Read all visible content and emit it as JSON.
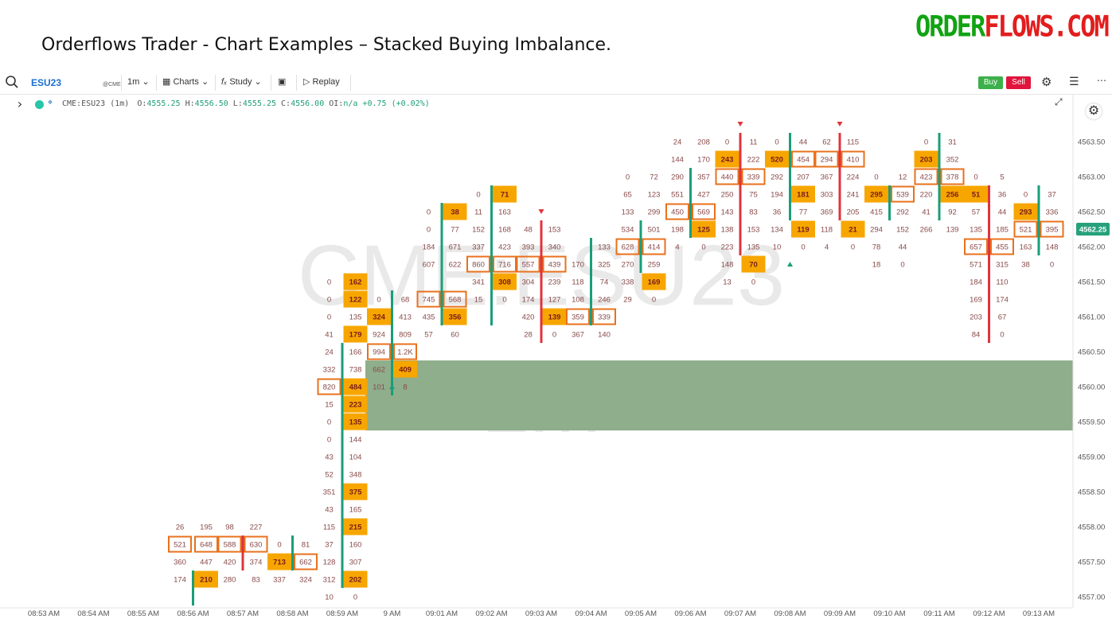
{
  "header": {
    "title": "Orderflows Trader - Chart Examples – Stacked Buying Imbalance.",
    "brand_left": "ORDER",
    "brand_right": "FLOWS.COM"
  },
  "toolbar": {
    "symbol": "ESU23",
    "exchange_badge": "@CME",
    "interval": "1m",
    "charts_label": "Charts",
    "study_label": "Study",
    "replay_label": "Replay",
    "buy_label": "Buy",
    "sell_label": "Sell"
  },
  "symbol_info": {
    "name": "CME:ESU23 (1m)",
    "o_label": "O:",
    "o": "4555.25",
    "h_label": "H:",
    "h": "4556.50",
    "l_label": "L:",
    "l": "4555.25",
    "c_label": "C:",
    "c": "4556.00",
    "oi_label": "OI:",
    "oi": "n/a",
    "change": "+0.75",
    "change_pct": "(+0.02%)"
  },
  "watermark": {
    "symbol": "CME:ESU23",
    "interval": "1m"
  },
  "colors": {
    "accent": "#1a6fd0",
    "buy_imbalance_fill": "#f7a600",
    "imbalance_outline": "#e8711c",
    "bull_bar": "#1a9e7a",
    "bear_bar": "#e0343c",
    "zone": "#8fae8c",
    "price_tag": "#26a17b",
    "cell_text": "#8a4a4a"
  },
  "chart_data": {
    "type": "footprint",
    "title": "",
    "price_step": 0.25,
    "last_price": "4562.25",
    "y_axis": {
      "min": 4556.75,
      "max": 4563.75,
      "ticks": [
        "4563.50",
        "4563.00",
        "4562.50",
        "4562.00",
        "4561.50",
        "4561.00",
        "4560.50",
        "4560.00",
        "4559.50",
        "4559.00",
        "4558.50",
        "4558.00",
        "4557.50",
        "4557.00"
      ]
    },
    "x_axis": {
      "ticks": [
        "08:53 AM",
        "08:54 AM",
        "08:55 AM",
        "08:56 AM",
        "08:57 AM",
        "08:58 AM",
        "08:59 AM",
        "9 AM",
        "09:01 AM",
        "09:02 AM",
        "09:03 AM",
        "09:04 AM",
        "09:05 AM",
        "09:06 AM",
        "09:07 AM",
        "09:08 AM",
        "09:09 AM",
        "09:10 AM",
        "09:11 AM",
        "09:12 AM",
        "09:13 AM"
      ]
    },
    "zone": {
      "from": 4559.5,
      "to": 4560.25
    },
    "markers": [
      {
        "type": "down",
        "bar": "09:03 AM",
        "price": 4562.5
      },
      {
        "type": "down",
        "bar": "09:07 AM",
        "price": 4563.75
      },
      {
        "type": "down",
        "bar": "09:09 AM",
        "price": 4563.75
      },
      {
        "type": "up",
        "bar": "9 AM",
        "price": 4560.0
      },
      {
        "type": "up",
        "bar": "09:08 AM",
        "price": 4561.75
      }
    ],
    "bars": [
      {
        "time": "08:56 AM",
        "dir": "up",
        "range": [
          4557.0,
          4557.25
        ],
        "cells": [
          {
            "p": 4558.0,
            "b": "26",
            "a": "195"
          },
          {
            "p": 4557.75,
            "b": "521",
            "a": "648",
            "hb": "o",
            "ha": "o"
          },
          {
            "p": 4557.5,
            "b": "360",
            "a": "447"
          },
          {
            "p": 4557.25,
            "b": "174",
            "a": "210",
            "ha": "f"
          }
        ]
      },
      {
        "time": "08:57 AM",
        "dir": "down",
        "range": [
          4557.5,
          4557.75
        ],
        "cells": [
          {
            "p": 4558.0,
            "b": "98",
            "a": "227"
          },
          {
            "p": 4557.75,
            "b": "588",
            "a": "630",
            "hb": "o",
            "ha": "o"
          },
          {
            "p": 4557.5,
            "b": "420",
            "a": "374"
          },
          {
            "p": 4557.25,
            "b": "280",
            "a": "83"
          }
        ]
      },
      {
        "time": "08:58 AM",
        "dir": "up",
        "range": [
          4557.5,
          4557.75
        ],
        "cells": [
          {
            "p": 4557.75,
            "b": "0",
            "a": "81"
          },
          {
            "p": 4557.5,
            "b": "713",
            "a": "662",
            "hb": "f",
            "ha": "o"
          },
          {
            "p": 4557.25,
            "b": "337",
            "a": "324"
          }
        ]
      },
      {
        "time": "08:59 AM",
        "dir": "up",
        "range": [
          4557.25,
          4560.5
        ],
        "cells": [
          {
            "p": 4561.5,
            "b": "0",
            "a": "162",
            "ha": "f"
          },
          {
            "p": 4561.25,
            "b": "0",
            "a": "122",
            "ha": "f"
          },
          {
            "p": 4561.0,
            "b": "0",
            "a": "135"
          },
          {
            "p": 4560.75,
            "b": "41",
            "a": "179",
            "ha": "f"
          },
          {
            "p": 4560.5,
            "b": "24",
            "a": "166"
          },
          {
            "p": 4560.25,
            "b": "332",
            "a": "738"
          },
          {
            "p": 4560.0,
            "b": "820",
            "a": "484",
            "hb": "o",
            "ha": "f"
          },
          {
            "p": 4559.75,
            "b": "15",
            "a": "223",
            "ha": "f"
          },
          {
            "p": 4559.5,
            "b": "0",
            "a": "135",
            "ha": "f"
          },
          {
            "p": 4559.25,
            "b": "0",
            "a": "144"
          },
          {
            "p": 4559.0,
            "b": "43",
            "a": "104"
          },
          {
            "p": 4558.75,
            "b": "52",
            "a": "348"
          },
          {
            "p": 4558.5,
            "b": "351",
            "a": "375",
            "ha": "f"
          },
          {
            "p": 4558.25,
            "b": "43",
            "a": "165"
          },
          {
            "p": 4558.0,
            "b": "115",
            "a": "215",
            "ha": "f"
          },
          {
            "p": 4557.75,
            "b": "37",
            "a": "160"
          },
          {
            "p": 4557.5,
            "b": "128",
            "a": "307"
          },
          {
            "p": 4557.25,
            "b": "312",
            "a": "202",
            "ha": "f"
          },
          {
            "p": 4557.0,
            "b": "10",
            "a": "0"
          }
        ]
      },
      {
        "time": "9 AM",
        "dir": "up",
        "range": [
          4560.0,
          4561.25
        ],
        "cells": [
          {
            "p": 4561.25,
            "b": "0",
            "a": "68"
          },
          {
            "p": 4561.0,
            "b": "324",
            "a": "413",
            "hb": "f"
          },
          {
            "p": 4560.75,
            "b": "924",
            "a": "809"
          },
          {
            "p": 4560.5,
            "b": "994",
            "a": "1.2K",
            "hb": "o",
            "ha": "o"
          },
          {
            "p": 4560.25,
            "b": "662",
            "a": "409",
            "ha": "f"
          },
          {
            "p": 4560.0,
            "b": "101",
            "a": "8"
          }
        ]
      },
      {
        "time": "09:01 AM",
        "dir": "up",
        "range": [
          4561.0,
          4562.5
        ],
        "cells": [
          {
            "p": 4562.5,
            "b": "0",
            "a": "38",
            "ha": "f"
          },
          {
            "p": 4562.25,
            "b": "0",
            "a": "77"
          },
          {
            "p": 4562.0,
            "b": "184",
            "a": "671"
          },
          {
            "p": 4561.75,
            "b": "607",
            "a": "622"
          },
          {
            "p": 4561.25,
            "b": "745",
            "a": "568",
            "hb": "o",
            "ha": "o"
          },
          {
            "p": 4561.0,
            "b": "435",
            "a": "356",
            "ha": "f"
          },
          {
            "p": 4560.75,
            "b": "57",
            "a": "60"
          }
        ]
      },
      {
        "time": "09:02 AM",
        "dir": "up",
        "range": [
          4561.0,
          4562.75
        ],
        "cells": [
          {
            "p": 4562.75,
            "b": "0",
            "a": "71",
            "ha": "f"
          },
          {
            "p": 4562.5,
            "b": "11",
            "a": "163"
          },
          {
            "p": 4562.25,
            "b": "152",
            "a": "168"
          },
          {
            "p": 4562.0,
            "b": "337",
            "a": "423"
          },
          {
            "p": 4561.75,
            "b": "860",
            "a": "716",
            "hb": "o",
            "ha": "o"
          },
          {
            "p": 4561.5,
            "b": "341",
            "a": "308",
            "ha": "f"
          },
          {
            "p": 4561.25,
            "b": "15",
            "a": "0"
          }
        ]
      },
      {
        "time": "09:03 AM",
        "dir": "down",
        "range": [
          4560.75,
          4562.25
        ],
        "cells": [
          {
            "p": 4562.25,
            "b": "48",
            "a": "153"
          },
          {
            "p": 4562.0,
            "b": "393",
            "a": "340"
          },
          {
            "p": 4561.75,
            "b": "557",
            "a": "439",
            "hb": "o",
            "ha": "o"
          },
          {
            "p": 4561.5,
            "b": "304",
            "a": "239"
          },
          {
            "p": 4561.25,
            "b": "174",
            "a": "127"
          },
          {
            "p": 4561.0,
            "b": "420",
            "a": "139",
            "ha": "f"
          },
          {
            "p": 4560.75,
            "b": "28",
            "a": "0"
          }
        ]
      },
      {
        "time": "09:04 AM",
        "dir": "up",
        "range": [
          4561.0,
          4562.0
        ],
        "cells": [
          {
            "p": 4562.0,
            "b": "",
            "a": "133"
          },
          {
            "p": 4561.75,
            "b": "170",
            "a": "325"
          },
          {
            "p": 4561.5,
            "b": "118",
            "a": "74"
          },
          {
            "p": 4561.25,
            "b": "108",
            "a": "246"
          },
          {
            "p": 4561.0,
            "b": "359",
            "a": "339",
            "hb": "o",
            "ha": "o"
          },
          {
            "p": 4560.75,
            "b": "367",
            "a": "140"
          }
        ]
      },
      {
        "time": "09:05 AM",
        "dir": "up",
        "range": [
          4561.75,
          4562.25
        ],
        "cells": [
          {
            "p": 4563.0,
            "b": "0",
            "a": "72"
          },
          {
            "p": 4562.75,
            "b": "65",
            "a": "123"
          },
          {
            "p": 4562.5,
            "b": "133",
            "a": "299"
          },
          {
            "p": 4562.25,
            "b": "534",
            "a": "501"
          },
          {
            "p": 4562.0,
            "b": "628",
            "a": "414",
            "hb": "o",
            "ha": "o"
          },
          {
            "p": 4561.75,
            "b": "270",
            "a": "259"
          },
          {
            "p": 4561.5,
            "b": "338",
            "a": "169",
            "ha": "f"
          },
          {
            "p": 4561.25,
            "b": "29",
            "a": "0"
          }
        ]
      },
      {
        "time": "09:06 AM",
        "dir": "up",
        "range": [
          4562.25,
          4563.0
        ],
        "cells": [
          {
            "p": 4563.5,
            "b": "24",
            "a": "208"
          },
          {
            "p": 4563.25,
            "b": "144",
            "a": "170"
          },
          {
            "p": 4563.0,
            "b": "290",
            "a": "357"
          },
          {
            "p": 4562.75,
            "b": "551",
            "a": "427"
          },
          {
            "p": 4562.5,
            "b": "450",
            "a": "569",
            "hb": "o",
            "ha": "o"
          },
          {
            "p": 4562.25,
            "b": "198",
            "a": "125",
            "ha": "f"
          },
          {
            "p": 4562.0,
            "b": "4",
            "a": "0"
          }
        ]
      },
      {
        "time": "09:07 AM",
        "dir": "down",
        "range": [
          4562.0,
          4563.5
        ],
        "cells": [
          {
            "p": 4563.5,
            "b": "0",
            "a": "11"
          },
          {
            "p": 4563.25,
            "b": "243",
            "a": "222",
            "hb": "f"
          },
          {
            "p": 4563.0,
            "b": "440",
            "a": "339",
            "hb": "o",
            "ha": "o"
          },
          {
            "p": 4562.75,
            "b": "250",
            "a": "75"
          },
          {
            "p": 4562.5,
            "b": "143",
            "a": "83"
          },
          {
            "p": 4562.25,
            "b": "138",
            "a": "153"
          },
          {
            "p": 4562.0,
            "b": "223",
            "a": "135"
          },
          {
            "p": 4561.75,
            "b": "148",
            "a": "70",
            "ha": "f"
          },
          {
            "p": 4561.5,
            "b": "13",
            "a": "0"
          }
        ]
      },
      {
        "time": "09:08 AM",
        "dir": "up",
        "range": [
          4562.5,
          4563.5
        ],
        "cells": [
          {
            "p": 4563.5,
            "b": "0",
            "a": "44"
          },
          {
            "p": 4563.25,
            "b": "520",
            "a": "454",
            "hb": "f",
            "ha": "o"
          },
          {
            "p": 4563.0,
            "b": "292",
            "a": "207"
          },
          {
            "p": 4562.75,
            "b": "194",
            "a": "181",
            "ha": "f"
          },
          {
            "p": 4562.5,
            "b": "36",
            "a": "77"
          },
          {
            "p": 4562.25,
            "b": "134",
            "a": "119",
            "ha": "f"
          },
          {
            "p": 4562.0,
            "b": "10",
            "a": "0"
          }
        ]
      },
      {
        "time": "09:09 AM",
        "dir": "down",
        "range": [
          4562.5,
          4563.5
        ],
        "cells": [
          {
            "p": 4563.5,
            "b": "62",
            "a": "115"
          },
          {
            "p": 4563.25,
            "b": "294",
            "a": "410",
            "hb": "o",
            "ha": "o"
          },
          {
            "p": 4563.0,
            "b": "367",
            "a": "224"
          },
          {
            "p": 4562.75,
            "b": "303",
            "a": "241"
          },
          {
            "p": 4562.5,
            "b": "369",
            "a": "205"
          },
          {
            "p": 4562.25,
            "b": "118",
            "a": "21",
            "ha": "f"
          },
          {
            "p": 4562.0,
            "b": "4",
            "a": "0"
          }
        ]
      },
      {
        "time": "09:10 AM",
        "dir": "up",
        "range": [
          4562.5,
          4562.75
        ],
        "cells": [
          {
            "p": 4563.0,
            "b": "0",
            "a": "12"
          },
          {
            "p": 4562.75,
            "b": "295",
            "a": "539",
            "hb": "f",
            "ha": "o"
          },
          {
            "p": 4562.5,
            "b": "415",
            "a": "292"
          },
          {
            "p": 4562.25,
            "b": "294",
            "a": "152"
          },
          {
            "p": 4562.0,
            "b": "78",
            "a": "44"
          },
          {
            "p": 4561.75,
            "b": "18",
            "a": "0"
          }
        ]
      },
      {
        "time": "09:11 AM",
        "dir": "up",
        "range": [
          4562.5,
          4563.5
        ],
        "cells": [
          {
            "p": 4563.5,
            "b": "0",
            "a": "31"
          },
          {
            "p": 4563.25,
            "b": "203",
            "a": "352",
            "hb": "f"
          },
          {
            "p": 4563.0,
            "b": "423",
            "a": "378",
            "hb": "o",
            "ha": "o"
          },
          {
            "p": 4562.75,
            "b": "220",
            "a": "256",
            "ha": "f"
          },
          {
            "p": 4562.5,
            "b": "41",
            "a": "92"
          },
          {
            "p": 4562.25,
            "b": "266",
            "a": "139"
          }
        ]
      },
      {
        "time": "09:12 AM",
        "dir": "down",
        "range": [
          4560.75,
          4562.75
        ],
        "cells": [
          {
            "p": 4563.0,
            "b": "0",
            "a": "5"
          },
          {
            "p": 4562.75,
            "b": "51",
            "a": "36",
            "hb": "f"
          },
          {
            "p": 4562.5,
            "b": "57",
            "a": "44"
          },
          {
            "p": 4562.25,
            "b": "135",
            "a": "185"
          },
          {
            "p": 4562.0,
            "b": "657",
            "a": "455",
            "hb": "o",
            "ha": "o"
          },
          {
            "p": 4561.75,
            "b": "571",
            "a": "315"
          },
          {
            "p": 4561.5,
            "b": "184",
            "a": "110"
          },
          {
            "p": 4561.25,
            "b": "169",
            "a": "174"
          },
          {
            "p": 4561.0,
            "b": "203",
            "a": "67"
          },
          {
            "p": 4560.75,
            "b": "84",
            "a": "0"
          }
        ]
      },
      {
        "time": "09:13 AM",
        "dir": "up",
        "range": [
          4562.0,
          4562.75
        ],
        "cells": [
          {
            "p": 4562.75,
            "b": "0",
            "a": "37"
          },
          {
            "p": 4562.5,
            "b": "293",
            "a": "336",
            "hb": "f"
          },
          {
            "p": 4562.25,
            "b": "521",
            "a": "395",
            "hb": "o",
            "ha": "o"
          },
          {
            "p": 4562.0,
            "b": "163",
            "a": "148"
          },
          {
            "p": 4561.75,
            "b": "38",
            "a": "0"
          }
        ]
      }
    ]
  }
}
